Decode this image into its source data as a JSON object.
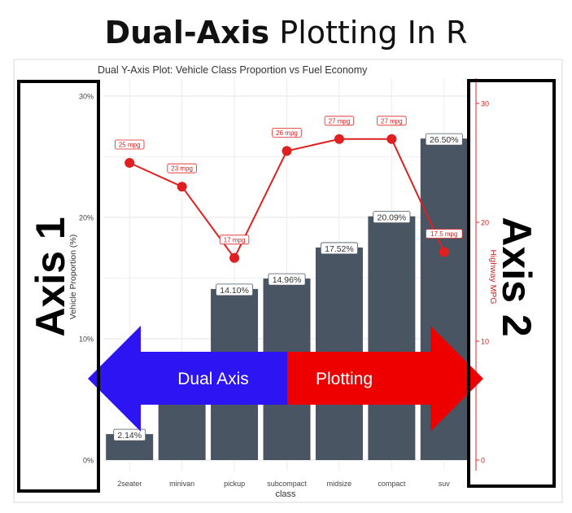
{
  "headline": {
    "bold": "Dual-Axis",
    "rest": "Plotting In R"
  },
  "chart_data": {
    "type": "bar",
    "title": "Dual Y-Axis Plot: Vehicle Class Proportion vs Fuel Economy",
    "xlabel": "class",
    "ylabel": "Vehicle Proportion (%)",
    "y2label": "Highway MPG",
    "categories": [
      "2seater",
      "minivan",
      "pickup",
      "subcompact",
      "midsize",
      "compact",
      "suv"
    ],
    "ylim": [
      0,
      30
    ],
    "y2lim": [
      0,
      30
    ],
    "yticks": [
      "0%",
      "10%",
      "20%",
      "30%"
    ],
    "y2ticks": [
      "0",
      "10",
      "20",
      "30"
    ],
    "grid": true,
    "series": [
      {
        "axis": "left",
        "kind": "bar",
        "values": [
          2.14,
          4.7,
          14.1,
          14.96,
          17.52,
          20.09,
          26.5
        ],
        "labels": [
          "2.14%",
          "",
          "14.10%",
          "14.96%",
          "17.52%",
          "20.09%",
          "26.50%"
        ],
        "color": "#4a5563"
      },
      {
        "axis": "right",
        "kind": "line",
        "values": [
          25,
          23,
          17,
          26,
          27,
          27,
          17.5
        ],
        "labels": [
          "25 mpg",
          "23 mpg",
          "17 mpg",
          "26 mpg",
          "27 mpg",
          "27 mpg",
          "17.5 mpg"
        ],
        "color": "#e02020"
      }
    ]
  },
  "annotations": {
    "axis1": "Axis 1",
    "axis2": "Axis 2",
    "arrow_left_text": "Dual Axis",
    "arrow_right_text": "Plotting",
    "arrow_left_color": "#2d14f2",
    "arrow_right_color": "#ee0000"
  }
}
